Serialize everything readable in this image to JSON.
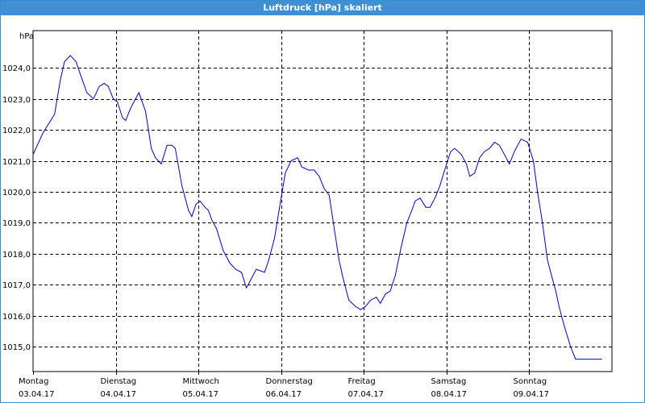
{
  "window": {
    "title": "Luftdruck [hPa] skaliert"
  },
  "chart_data": {
    "type": "line",
    "title": "Luftdruck [hPa] skaliert",
    "ylabel": "hPa",
    "xlabel": "",
    "ylim": [
      1014.2,
      1025.2
    ],
    "xlim": [
      0,
      7
    ],
    "grid": true,
    "line_color": "#0000c0",
    "yticks": [
      {
        "value": 1015.0,
        "label": "1015,0"
      },
      {
        "value": 1016.0,
        "label": "1016,0"
      },
      {
        "value": 1017.0,
        "label": "1017,0"
      },
      {
        "value": 1018.0,
        "label": "1018,0"
      },
      {
        "value": 1019.0,
        "label": "1019,0"
      },
      {
        "value": 1020.0,
        "label": "1020,0"
      },
      {
        "value": 1021.0,
        "label": "1021,0"
      },
      {
        "value": 1022.0,
        "label": "1022,0"
      },
      {
        "value": 1023.0,
        "label": "1023,0"
      },
      {
        "value": 1024.0,
        "label": "1024,0"
      }
    ],
    "xticks": [
      {
        "value": 0,
        "day": "Montag",
        "date": "03.04.17"
      },
      {
        "value": 1,
        "day": "Dienstag",
        "date": "04.04.17"
      },
      {
        "value": 2,
        "day": "Mittwoch",
        "date": "05.04.17"
      },
      {
        "value": 3,
        "day": "Donnerstag",
        "date": "06.04.17"
      },
      {
        "value": 4,
        "day": "Freitag",
        "date": "07.04.17"
      },
      {
        "value": 5,
        "day": "Samstag",
        "date": "08.04.17"
      },
      {
        "value": 6,
        "day": "Sonntag",
        "date": "09.04.17"
      }
    ],
    "series": [
      {
        "x": [
          0.0,
          0.12,
          0.26,
          0.33,
          0.38,
          0.45,
          0.52,
          0.57,
          0.65,
          0.73,
          0.8,
          0.86,
          0.91,
          0.97,
          1.02,
          1.08,
          1.12,
          1.18,
          1.28,
          1.36,
          1.43,
          1.48,
          1.55,
          1.62,
          1.68,
          1.72,
          1.8,
          1.88,
          1.92,
          1.97,
          2.02,
          2.08,
          2.12,
          2.16,
          2.22,
          2.3,
          2.38,
          2.45,
          2.52,
          2.58,
          2.7,
          2.8,
          2.85,
          2.92,
          2.95,
          3.0,
          3.05,
          3.12,
          3.2,
          3.25,
          3.33,
          3.4,
          3.46,
          3.52,
          3.58,
          3.66,
          3.7,
          3.75,
          3.82,
          3.9,
          3.96,
          4.02,
          4.08,
          4.15,
          4.2,
          4.26,
          4.32,
          4.38,
          4.45,
          4.52,
          4.58,
          4.62,
          4.68,
          4.75,
          4.8,
          4.86,
          4.92,
          5.0,
          5.05,
          5.1,
          5.18,
          5.24,
          5.28,
          5.34,
          5.4,
          5.46,
          5.52,
          5.58,
          5.64,
          5.7,
          5.76,
          5.82,
          5.9,
          5.98,
          6.05,
          6.1,
          6.16,
          6.22,
          6.28,
          6.32,
          6.36,
          6.42,
          6.5,
          6.56,
          6.62,
          6.68,
          6.74,
          6.8,
          6.88,
          6.94,
          6.99
        ],
        "y": [
          1021.2,
          1021.9,
          1022.5,
          1023.6,
          1024.2,
          1024.4,
          1024.2,
          1023.8,
          1023.2,
          1023.0,
          1023.4,
          1023.5,
          1023.4,
          1023.0,
          1022.9,
          1022.4,
          1022.3,
          1022.7,
          1023.2,
          1022.6,
          1021.4,
          1021.1,
          1020.9,
          1021.5,
          1021.5,
          1021.4,
          1020.2,
          1019.4,
          1019.2,
          1019.6,
          1019.7,
          1019.5,
          1019.4,
          1019.1,
          1018.8,
          1018.1,
          1017.7,
          1017.5,
          1017.4,
          1016.9,
          1017.5,
          1017.4,
          1017.8,
          1018.5,
          1019.0,
          1019.8,
          1020.6,
          1021.0,
          1021.1,
          1020.8,
          1020.7,
          1020.7,
          1020.5,
          1020.1,
          1019.9,
          1018.5,
          1017.8,
          1017.2,
          1016.5,
          1016.3,
          1016.2,
          1016.3,
          1016.5,
          1016.6,
          1016.4,
          1016.7,
          1016.8,
          1017.3,
          1018.2,
          1019.0,
          1019.4,
          1019.7,
          1019.8,
          1019.5,
          1019.5,
          1019.8,
          1020.2,
          1020.9,
          1021.3,
          1021.4,
          1021.2,
          1020.9,
          1020.5,
          1020.6,
          1021.1,
          1021.3,
          1021.4,
          1021.6,
          1021.5,
          1021.2,
          1020.9,
          1021.3,
          1021.7,
          1021.6,
          1021.0,
          1020.0,
          1019.0,
          1017.8,
          1017.2,
          1016.8,
          1016.3,
          1015.7,
          1015.0,
          1014.6,
          1014.6,
          1014.6,
          1014.6,
          1014.6,
          1014.6,
          1014.6,
          1014.6
        ]
      }
    ]
  }
}
